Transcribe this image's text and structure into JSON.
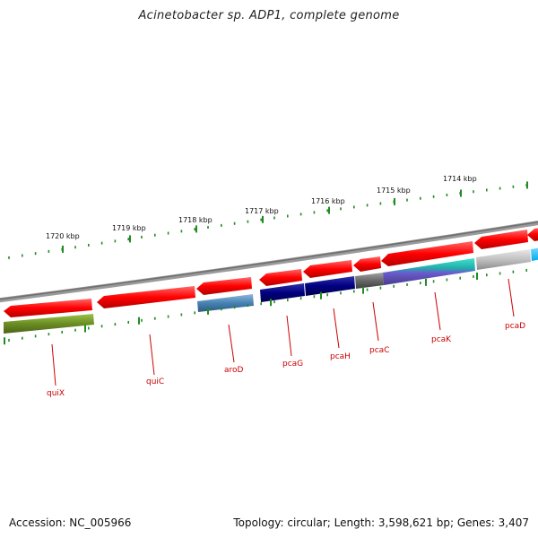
{
  "title": "Acinetobacter sp. ADP1, complete genome",
  "accession": "Accession: NC_005966",
  "summary": "Topology: circular; Length: 3,598,621 bp; Genes: 3,407",
  "scale": {
    "ticks": [
      "1720 kbp",
      "1719 kbp",
      "1718 kbp",
      "1717 kbp",
      "1716 kbp",
      "1715 kbp",
      "1714 kbp"
    ]
  },
  "genes": [
    {
      "label": "quiX",
      "color": "#6b8e23"
    },
    {
      "label": "quiC",
      "color": "#ff0000"
    },
    {
      "label": "aroD",
      "color": "#4682b4"
    },
    {
      "label": "pcaG",
      "color": "#000080"
    },
    {
      "label": "pcaH",
      "color": "#000080"
    },
    {
      "label": "pcaC",
      "color": "#696969"
    },
    {
      "label": "pcaK",
      "color": "#20b2aa"
    },
    {
      "label": "pcaD",
      "color": "#c0c0c0"
    }
  ],
  "colors": {
    "backbone": "#808080",
    "tick": "#228b22",
    "label_text": "#cc0000",
    "forward_genes": "#ff0000"
  }
}
